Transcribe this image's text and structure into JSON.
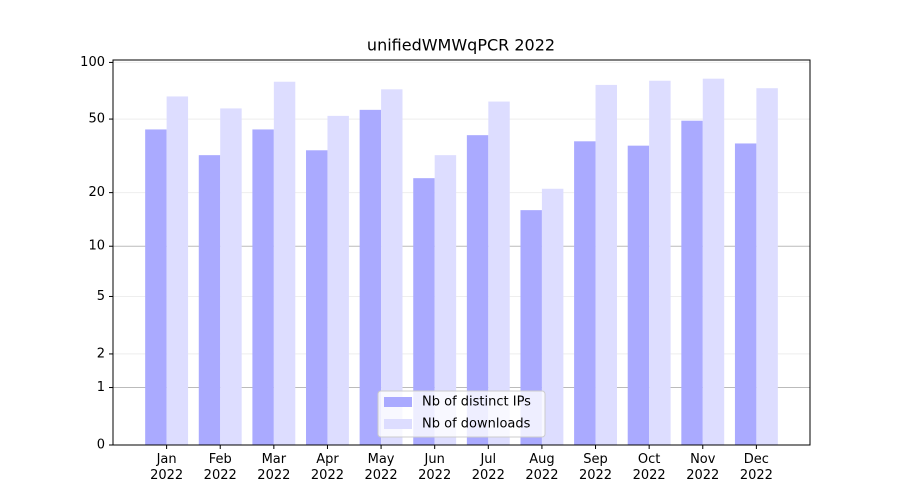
{
  "chart_data": {
    "type": "bar",
    "title": "unifiedWMWqPCR 2022",
    "categories": [
      "Jan\n2022",
      "Feb\n2022",
      "Mar\n2022",
      "Apr\n2022",
      "May\n2022",
      "Jun\n2022",
      "Jul\n2022",
      "Aug\n2022",
      "Sep\n2022",
      "Oct\n2022",
      "Nov\n2022",
      "Dec\n2022"
    ],
    "series": [
      {
        "name": "Nb of distinct IPs",
        "color": "#aaaaff",
        "values": [
          44,
          32,
          44,
          34,
          56,
          24,
          41,
          16,
          38,
          36,
          49,
          37
        ]
      },
      {
        "name": "Nb of downloads",
        "color": "#ddddff",
        "values": [
          66,
          57,
          79,
          52,
          72,
          32,
          62,
          21,
          76,
          80,
          82,
          73
        ]
      }
    ],
    "yscale": "log1p",
    "ylim": [
      0,
      103
    ],
    "yticks": [
      0,
      1,
      2,
      5,
      10,
      20,
      50,
      100
    ],
    "grid": true,
    "legend": "lower center"
  }
}
